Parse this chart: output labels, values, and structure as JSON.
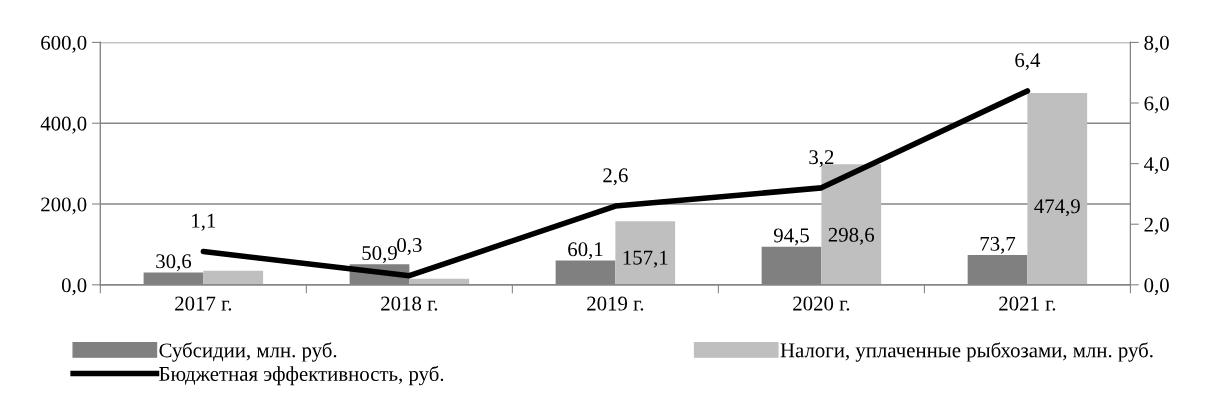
{
  "chart_data": {
    "type": "bar",
    "categories": [
      "2017 г.",
      "2018 г.",
      "2019 г.",
      "2020 г.",
      "2021 г."
    ],
    "series": [
      {
        "name": "Субсидии, млн. руб.",
        "color": "#808080",
        "values": [
          30.6,
          50.9,
          60.1,
          94.5,
          73.7
        ],
        "value_labels": [
          "30,6",
          "50,9",
          "60,1",
          "94,5",
          "73,7"
        ]
      },
      {
        "name": "Налоги, уплаченные рыбхозами, млн. руб.",
        "color": "#bfbfbf",
        "values": [
          35,
          15,
          157.1,
          298.6,
          474.9
        ],
        "value_labels": [
          null,
          null,
          "157,1",
          "298,6",
          "474,9"
        ]
      },
      {
        "name": "Бюджетная эффективность, руб.",
        "type": "line",
        "axis": "y2",
        "color": "#000000",
        "values": [
          1.1,
          0.3,
          2.6,
          3.2,
          6.4
        ],
        "value_labels": [
          "1,1",
          "0,3",
          "2,6",
          "3,2",
          "6,4"
        ]
      }
    ],
    "ylim": [
      0,
      600
    ],
    "yticks": [
      {
        "value": 0,
        "label": "0,0"
      },
      {
        "value": 200,
        "label": "200,0"
      },
      {
        "value": 400,
        "label": "400,0"
      },
      {
        "value": 600,
        "label": "600,0"
      }
    ],
    "y2lim": [
      0,
      8
    ],
    "y2ticks": [
      {
        "value": 0,
        "label": "0,0"
      },
      {
        "value": 2,
        "label": "2,0"
      },
      {
        "value": 4,
        "label": "4,0"
      },
      {
        "value": 6,
        "label": "6,0"
      },
      {
        "value": 8,
        "label": "8,0"
      }
    ],
    "grid": "y",
    "legend": "bottom",
    "marker": "none",
    "line_style": "solid"
  }
}
